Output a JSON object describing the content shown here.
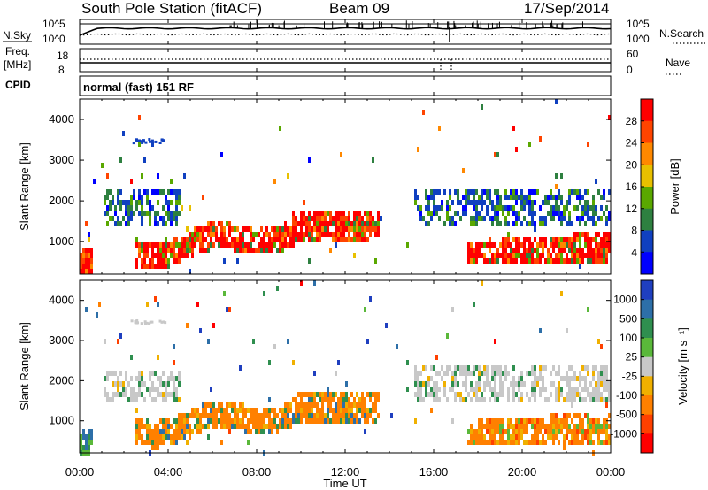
{
  "header": {
    "title": "South Pole Station (fitACF)",
    "beam": "Beam 09",
    "date": "17/Sep/2014"
  },
  "top_panel": {
    "left_label": "N.Sky",
    "right_label": "N.Search",
    "left_ticks": [
      "10^5",
      "10^0"
    ],
    "right_ticks": [
      "10^5",
      "10^0"
    ]
  },
  "freq_panel": {
    "left_label_1": "Freq.",
    "left_label_2": "[MHz]",
    "right_label": "Nave",
    "left_ticks": [
      "18",
      "8"
    ],
    "right_ticks": [
      "60",
      "0"
    ]
  },
  "cpid": {
    "label": "CPID",
    "value": "normal (fast) 151 RF"
  },
  "chart_data": [
    {
      "type": "heatmap",
      "ylabel": "Slant Range [km]",
      "y_ticks": [
        1000,
        2000,
        3000,
        4000
      ],
      "ylim": [
        200,
        4500
      ],
      "colorbar": {
        "label": "Power [dB]",
        "ticks": [
          "28",
          "24",
          "20",
          "16",
          "12",
          "8",
          "4"
        ],
        "colors": [
          "#ff0000",
          "#ff4400",
          "#ff8800",
          "#e8c000",
          "#5aa800",
          "#2e8040",
          "#1040c0",
          "#0000ff"
        ]
      }
    },
    {
      "type": "heatmap",
      "ylabel": "Slant Range [km]",
      "y_ticks": [
        1000,
        2000,
        3000,
        4000
      ],
      "ylim": [
        200,
        4500
      ],
      "colorbar": {
        "label": "Velocity [m s⁻¹]",
        "ticks": [
          "1000",
          "500",
          "100",
          "25",
          "-25",
          "-100",
          "-500",
          "-1000"
        ],
        "colors": [
          "#1f3fbf",
          "#2d6fa8",
          "#2f8f4f",
          "#5ab83a",
          "#c8c8c8",
          "#f0b000",
          "#ff8000",
          "#ff4000",
          "#ff0000"
        ]
      }
    }
  ],
  "x_axis": {
    "ticks": [
      "00:00",
      "04:00",
      "08:00",
      "12:00",
      "16:00",
      "20:00",
      "00:00"
    ],
    "label": "Time UT"
  }
}
